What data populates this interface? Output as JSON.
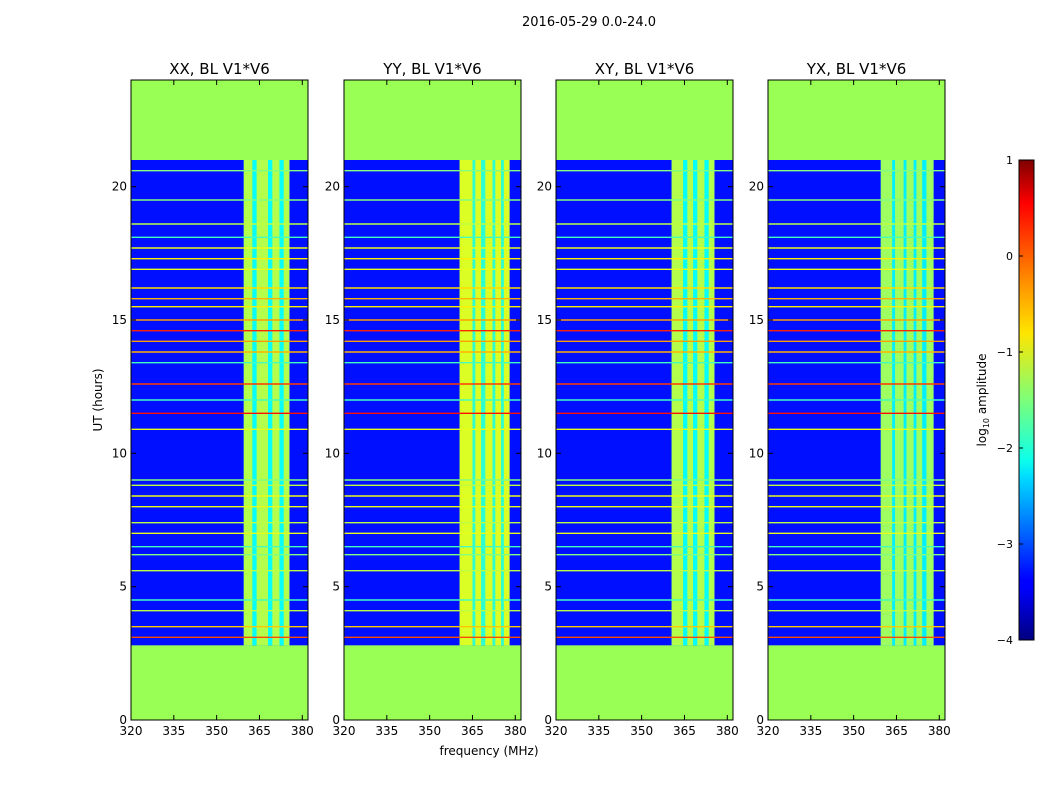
{
  "figure": {
    "suptitle": "2016-05-29 0.0-24.0"
  },
  "chart_data": {
    "type": "heatmap",
    "shared": {
      "xlabel": "frequency (MHz)",
      "ylabel": "UT (hours)",
      "xlim": [
        320,
        382
      ],
      "ylim": [
        0,
        24
      ],
      "xticks": [
        320,
        335,
        350,
        365,
        380
      ],
      "yticks": [
        0,
        5,
        10,
        15,
        20
      ],
      "xtick_labels": [
        "320",
        "335",
        "350",
        "365",
        "380"
      ],
      "ytick_labels": [
        "0",
        "5",
        "10",
        "15",
        "20"
      ],
      "fill_color": "#99ff55",
      "data_time_range": [
        2.8,
        21.0
      ],
      "colormap": "jet",
      "background_log10_amplitude": -3.3
    },
    "panels": [
      {
        "title": "XX, BL V1*V6",
        "band_log10_amplitude": -1.6,
        "band_freq_range": [
          359.5,
          375.5
        ],
        "band_columns": [
          {
            "start": 359.5,
            "end": 362.5
          },
          {
            "start": 364.0,
            "end": 368.0
          },
          {
            "start": 369.5,
            "end": 372.0
          },
          {
            "start": 373.5,
            "end": 375.5
          }
        ]
      },
      {
        "title": "YY, BL V1*V6",
        "band_log10_amplitude": -1.4,
        "band_freq_range": [
          360.5,
          378.0
        ],
        "band_columns": [
          {
            "start": 360.5,
            "end": 365.0
          },
          {
            "start": 366.0,
            "end": 368.0
          },
          {
            "start": 369.5,
            "end": 372.0
          },
          {
            "start": 373.0,
            "end": 375.0
          },
          {
            "start": 376.0,
            "end": 378.0
          }
        ]
      },
      {
        "title": "XY, BL V1*V6",
        "band_log10_amplitude": -1.6,
        "band_freq_range": [
          360.5,
          375.5
        ],
        "band_columns": [
          {
            "start": 360.5,
            "end": 364.5
          },
          {
            "start": 366.0,
            "end": 368.0
          },
          {
            "start": 369.5,
            "end": 372.0
          },
          {
            "start": 373.5,
            "end": 375.5
          }
        ]
      },
      {
        "title": "YX, BL V1*V6",
        "band_log10_amplitude": -1.7,
        "band_freq_range": [
          359.5,
          378.0
        ],
        "band_columns": [
          {
            "start": 359.5,
            "end": 363.5
          },
          {
            "start": 364.5,
            "end": 367.5
          },
          {
            "start": 368.5,
            "end": 371.0
          },
          {
            "start": 372.0,
            "end": 374.0
          },
          {
            "start": 375.5,
            "end": 378.0
          }
        ]
      }
    ],
    "rfi_lines": [
      {
        "ut": 3.1,
        "level": 0.0
      },
      {
        "ut": 3.5,
        "level": -0.6
      },
      {
        "ut": 4.1,
        "level": -1.2
      },
      {
        "ut": 4.5,
        "level": -1.8
      },
      {
        "ut": 5.6,
        "level": -1.2
      },
      {
        "ut": 6.2,
        "level": -1.5
      },
      {
        "ut": 6.5,
        "level": -1.8
      },
      {
        "ut": 7.0,
        "level": -1.0
      },
      {
        "ut": 7.4,
        "level": -1.2
      },
      {
        "ut": 8.0,
        "level": -1.0
      },
      {
        "ut": 8.4,
        "level": -1.0
      },
      {
        "ut": 8.8,
        "level": -1.2
      },
      {
        "ut": 9.0,
        "level": -1.5
      },
      {
        "ut": 10.9,
        "level": -1.0
      },
      {
        "ut": 11.5,
        "level": 0.3
      },
      {
        "ut": 12.0,
        "level": -1.8
      },
      {
        "ut": 12.6,
        "level": 0.1
      },
      {
        "ut": 13.4,
        "level": -1.8
      },
      {
        "ut": 13.8,
        "level": -0.5
      },
      {
        "ut": 14.2,
        "level": -0.4
      },
      {
        "ut": 14.6,
        "level": 0.2
      },
      {
        "ut": 15.0,
        "level": -0.4
      },
      {
        "ut": 15.5,
        "level": -0.8
      },
      {
        "ut": 15.8,
        "level": -0.5
      },
      {
        "ut": 16.2,
        "level": -0.7
      },
      {
        "ut": 16.9,
        "level": -1.0
      },
      {
        "ut": 17.3,
        "level": -0.8
      },
      {
        "ut": 17.7,
        "level": -1.0
      },
      {
        "ut": 18.1,
        "level": -1.8
      },
      {
        "ut": 18.6,
        "level": -1.2
      },
      {
        "ut": 19.5,
        "level": -1.5
      },
      {
        "ut": 20.6,
        "level": -1.5
      }
    ],
    "colorbar": {
      "label": "log10 amplitude",
      "label_base": "log",
      "label_sub": "10",
      "label_rest": " amplitude",
      "range": [
        -4,
        1
      ],
      "ticks": [
        1,
        0,
        -1,
        -2,
        -3,
        -4
      ],
      "tick_labels": [
        "1",
        "0",
        "−1",
        "−2",
        "−3",
        "−4"
      ]
    }
  }
}
